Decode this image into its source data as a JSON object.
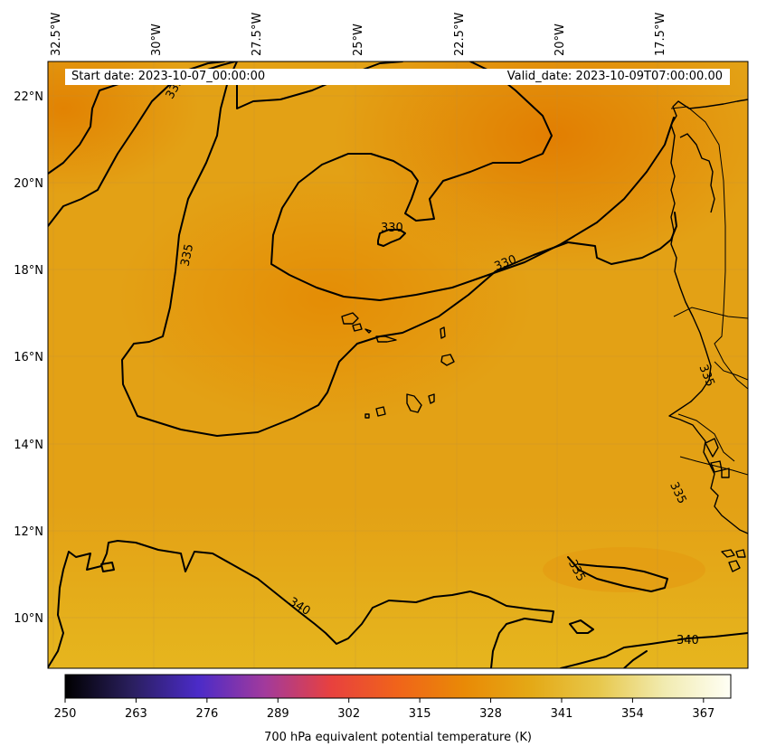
{
  "map": {
    "start_date": "Start date: 2023-10-07_00:00:00",
    "valid_date": "Valid_date: 2023-10-09T07:00:00.00",
    "lon_labels": [
      "32.5°W",
      "30°W",
      "27.5°W",
      "25°W",
      "22.5°W",
      "20°W",
      "17.5°W"
    ],
    "lat_labels": [
      "22°N",
      "20°N",
      "18°N",
      "16°N",
      "14°N",
      "12°N",
      "10°N"
    ],
    "contour_labels": [
      "335",
      "335",
      "330",
      "330",
      "335",
      "335",
      "335",
      "340",
      "340"
    ],
    "colors": {
      "field_main": "#e3a115",
      "field_warm": "#e58a05",
      "field_south": "#e6b31c"
    }
  },
  "colorbar": {
    "ticks": [
      "250",
      "263",
      "276",
      "289",
      "302",
      "315",
      "328",
      "341",
      "354",
      "367"
    ],
    "range": [
      250,
      372
    ],
    "label": "700 hPa equivalent potential temperature (K)",
    "colormap_stops": [
      "#000000",
      "#2a1f5e",
      "#4b2bc8",
      "#a23a9c",
      "#e8413e",
      "#f0641a",
      "#e98a06",
      "#e4a916",
      "#e7c74a",
      "#f1ebb0",
      "#fffff5"
    ]
  }
}
